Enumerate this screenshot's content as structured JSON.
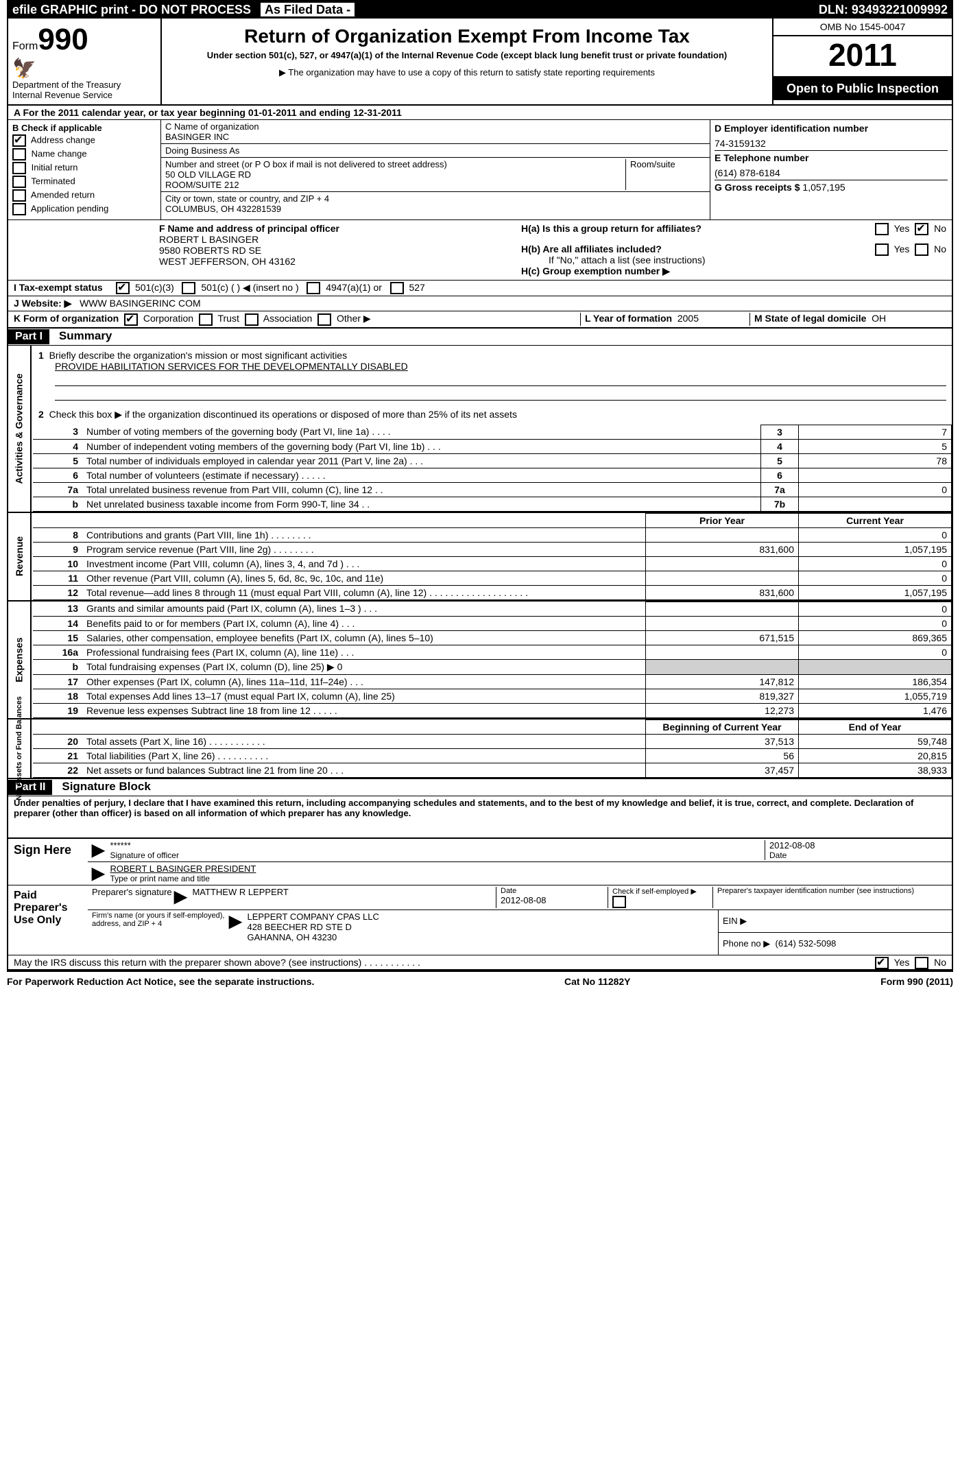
{
  "top": {
    "efile": "efile GRAPHIC print - DO NOT PROCESS",
    "asfiled": "As Filed Data -",
    "dln_label": "DLN:",
    "dln": "93493221009992"
  },
  "header": {
    "form_word": "Form",
    "form_no": "990",
    "dept1": "Department of the Treasury",
    "dept2": "Internal Revenue Service",
    "title": "Return of Organization Exempt From Income Tax",
    "sub1": "Under section 501(c), 527, or 4947(a)(1) of the Internal Revenue Code (except black lung benefit trust or private foundation)",
    "sub2": "▶ The organization may have to use a copy of this return to satisfy state reporting requirements",
    "omb": "OMB No 1545-0047",
    "year": "2011",
    "open": "Open to Public Inspection"
  },
  "line_a": "A  For the 2011 calendar year, or tax year beginning 01-01-2011    and ending 12-31-2011",
  "col_b": {
    "title": "B  Check if applicable",
    "items": [
      {
        "label": "Address change",
        "checked": true
      },
      {
        "label": "Name change",
        "checked": false
      },
      {
        "label": "Initial return",
        "checked": false
      },
      {
        "label": "Terminated",
        "checked": false
      },
      {
        "label": "Amended return",
        "checked": false
      },
      {
        "label": "Application pending",
        "checked": false
      }
    ]
  },
  "col_c": {
    "c1_lbl": "C Name of organization",
    "c1": "BASINGER INC",
    "dba_lbl": "Doing Business As",
    "dba": "",
    "addr_lbl": "Number and street (or P O  box if mail is not delivered to street address)",
    "room_lbl": "Room/suite",
    "addr1": "50 OLD VILLAGE RD",
    "addr2": "ROOM/SUITE 212",
    "city_lbl": "City or town, state or country, and ZIP + 4",
    "city": "COLUMBUS, OH  432281539"
  },
  "col_d": {
    "d_lbl": "D Employer identification number",
    "ein": "74-3159132",
    "e_lbl": "E Telephone number",
    "phone": "(614) 878-6184",
    "g_lbl": "G Gross receipts $",
    "gross": "1,057,195"
  },
  "fh": {
    "f_lbl": "F  Name and address of principal officer",
    "f1": "ROBERT L BASINGER",
    "f2": "9580 ROBERTS RD SE",
    "f3": "WEST JEFFERSON, OH  43162",
    "ha": "H(a)  Is this a group return for affiliates?",
    "hb": "H(b)  Are all affiliates included?",
    "hb2": "If \"No,\" attach a list  (see instructions)",
    "hc": "H(c)   Group exemption number ▶",
    "yes": "Yes",
    "no": "No"
  },
  "i": {
    "lbl": "I   Tax-exempt status",
    "c1": "501(c)(3)",
    "c2": "501(c) (   ) ◀ (insert no )",
    "c3": "4947(a)(1) or",
    "c4": "527"
  },
  "j": {
    "lbl": "J  Website: ▶",
    "val": "WWW BASINGERINC COM"
  },
  "k": {
    "lbl": "K Form of organization",
    "c": "Corporation",
    "t": "Trust",
    "a": "Association",
    "o": "Other ▶",
    "l_lbl": "L Year of formation",
    "l_val": "2005",
    "m_lbl": "M State of legal domicile",
    "m_val": "OH"
  },
  "part1": {
    "hdr": "Part I",
    "title": "Summary"
  },
  "gov": {
    "side": "Activities & Governance",
    "q1_lbl": "Briefly describe the organization's mission or most significant activities",
    "q1": "PROVIDE HABILITATION SERVICES FOR THE DEVELOPMENTALLY DISABLED",
    "q2": "Check this box ▶        if the organization discontinued its operations or disposed of more than 25% of its net assets",
    "rows": [
      {
        "n": "3",
        "d": "Number of voting members of the governing body (Part VI, line 1a)   .    .    .    .",
        "k": "3",
        "v": "7"
      },
      {
        "n": "4",
        "d": "Number of independent voting members of the governing body (Part VI, line 1b)   .    .    .",
        "k": "4",
        "v": "5"
      },
      {
        "n": "5",
        "d": "Total number of individuals employed in calendar year 2011 (Part V, line 2a)    .    .    .",
        "k": "5",
        "v": "78"
      },
      {
        "n": "6",
        "d": "Total number of volunteers (estimate if necessary)   .    .    .    .    .",
        "k": "6",
        "v": ""
      },
      {
        "n": "7a",
        "d": "Total unrelated business revenue from Part VIII, column (C), line 12   .   .",
        "k": "7a",
        "v": "0"
      },
      {
        "n": "b",
        "d": "Net unrelated business taxable income from Form 990-T, line 34   .   .",
        "k": "7b",
        "v": ""
      }
    ]
  },
  "rev": {
    "side": "Revenue",
    "hdr_prior": "Prior Year",
    "hdr_cur": "Current Year",
    "rows": [
      {
        "n": "8",
        "d": "Contributions and grants (Part VIII, line 1h)   .    .    .    .    .    .    .    .",
        "p": "",
        "c": "0"
      },
      {
        "n": "9",
        "d": "Program service revenue (Part VIII, line 2g)   .    .    .    .    .    .    .    .",
        "p": "831,600",
        "c": "1,057,195"
      },
      {
        "n": "10",
        "d": "Investment income (Part VIII, column (A), lines 3, 4, and 7d )   .    .    .",
        "p": "",
        "c": "0"
      },
      {
        "n": "11",
        "d": "Other revenue (Part VIII, column (A), lines 5, 6d, 8c, 9c, 10c, and 11e)",
        "p": "",
        "c": "0"
      },
      {
        "n": "12",
        "d": "Total revenue—add lines 8 through 11 (must equal Part VIII, column (A), line 12) .   .   .   .   .   .   .   .   .   .   .   .   .   .   .   .   .   .   .",
        "p": "831,600",
        "c": "1,057,195"
      }
    ]
  },
  "exp": {
    "side": "Expenses",
    "rows": [
      {
        "n": "13",
        "d": "Grants and similar amounts paid (Part IX, column (A), lines 1–3 )   .   .   .",
        "p": "",
        "c": "0"
      },
      {
        "n": "14",
        "d": "Benefits paid to or for members (Part IX, column (A), line 4)   .    .    .",
        "p": "",
        "c": "0"
      },
      {
        "n": "15",
        "d": "Salaries, other compensation, employee benefits (Part IX, column (A), lines 5–10)",
        "p": "671,515",
        "c": "869,365"
      },
      {
        "n": "16a",
        "d": "Professional fundraising fees (Part IX, column (A), line 11e)   .    .    .",
        "p": "",
        "c": "0"
      },
      {
        "n": "b",
        "d": "Total fundraising expenses (Part IX, column (D), line 25) ▶ 0",
        "p": "shade",
        "c": "shade"
      },
      {
        "n": "17",
        "d": "Other expenses (Part IX, column (A), lines 11a–11d, 11f–24e)   .    .    .",
        "p": "147,812",
        "c": "186,354"
      },
      {
        "n": "18",
        "d": "Total expenses  Add lines 13–17 (must equal Part IX, column (A), line 25)",
        "p": "819,327",
        "c": "1,055,719"
      },
      {
        "n": "19",
        "d": "Revenue less expenses  Subtract line 18 from line 12   .    .    .    .    .",
        "p": "12,273",
        "c": "1,476"
      }
    ]
  },
  "net": {
    "side": "Net Assets or Fund Balances",
    "hdr_b": "Beginning of Current Year",
    "hdr_e": "End of Year",
    "rows": [
      {
        "n": "20",
        "d": "Total assets (Part X, line 16)   .   .   .   .   .   .   .   .   .   .   .",
        "p": "37,513",
        "c": "59,748"
      },
      {
        "n": "21",
        "d": "Total liabilities (Part X, line 26)   .   .   .   .   .   .   .   .   .   .",
        "p": "56",
        "c": "20,815"
      },
      {
        "n": "22",
        "d": "Net assets or fund balances  Subtract line 21 from line 20   .   .   .",
        "p": "37,457",
        "c": "38,933"
      }
    ]
  },
  "part2": {
    "hdr": "Part II",
    "title": "Signature Block"
  },
  "perjury": "Under penalties of perjury, I declare that I have examined this return, including accompanying schedules and statements, and to the best of my knowledge and belief, it is true, correct, and complete. Declaration of preparer (other than officer) is based on all information of which preparer has any knowledge.",
  "sign": {
    "here": "Sign Here",
    "stars": "******",
    "sig_lbl": "Signature of officer",
    "date": "2012-08-08",
    "date_lbl": "Date",
    "name": "ROBERT L BASINGER PRESIDENT",
    "name_lbl": "Type or print name and title"
  },
  "paid": {
    "here": "Paid Preparer's Use Only",
    "prep_sig_lbl": "Preparer's signature",
    "prep_name": "MATTHEW R LEPPERT",
    "date_lbl": "Date",
    "date": "2012-08-08",
    "self_lbl": "Check if self-employed ▶",
    "ptin_lbl": "Preparer's taxpayer identification number (see instructions)",
    "firm_lbl": "Firm's name (or yours if self-employed), address, and ZIP + 4",
    "firm": "LEPPERT COMPANY CPAS LLC",
    "firm_addr1": "428 BEECHER RD STE D",
    "firm_addr2": "GAHANNA, OH  43230",
    "ein_lbl": "EIN ▶",
    "phone_lbl": "Phone no  ▶",
    "phone": "(614) 532-5098"
  },
  "discuss": "May the IRS discuss this return with the preparer shown above? (see instructions)   .   .   .   .   .   .   .   .   .   .   .",
  "footer": {
    "left": "For Paperwork Reduction Act Notice, see the separate instructions.",
    "mid": "Cat No 11282Y",
    "right": "Form 990 (2011)"
  }
}
